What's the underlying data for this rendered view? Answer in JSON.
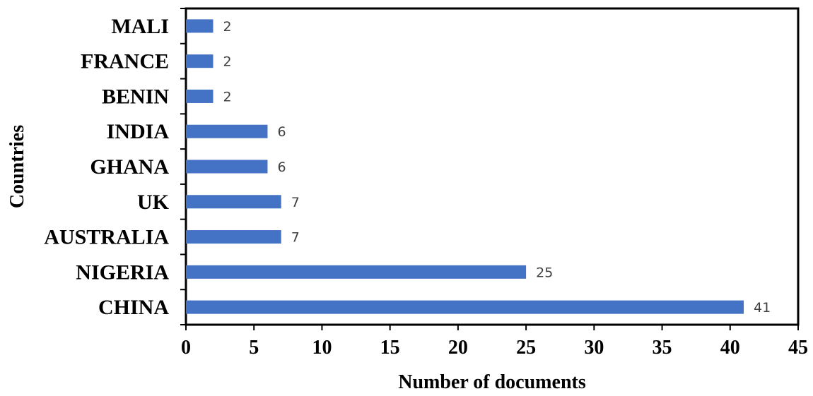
{
  "chart_data": {
    "type": "bar",
    "orientation": "horizontal",
    "categories": [
      "CHINA",
      "NIGERIA",
      "AUSTRALIA",
      "UK",
      "GHANA",
      "INDIA",
      "BENIN",
      "FRANCE",
      "MALI"
    ],
    "values": [
      41,
      25,
      7,
      7,
      6,
      6,
      2,
      2,
      2
    ],
    "data_labels": [
      "41",
      "25",
      "7",
      "7",
      "6",
      "6",
      "2",
      "2",
      "2"
    ],
    "title": "",
    "xlabel": "Number of documents",
    "ylabel": "Countries",
    "xlim": [
      0,
      45
    ],
    "xticks": [
      0,
      5,
      10,
      15,
      20,
      25,
      30,
      35,
      40,
      45
    ],
    "xtick_labels": [
      "0",
      "5",
      "10",
      "15",
      "20",
      "25",
      "30",
      "35",
      "40",
      "45"
    ],
    "grid": false,
    "legend": "none",
    "bar_color": "#4472C4",
    "axis_color": "#000000"
  }
}
